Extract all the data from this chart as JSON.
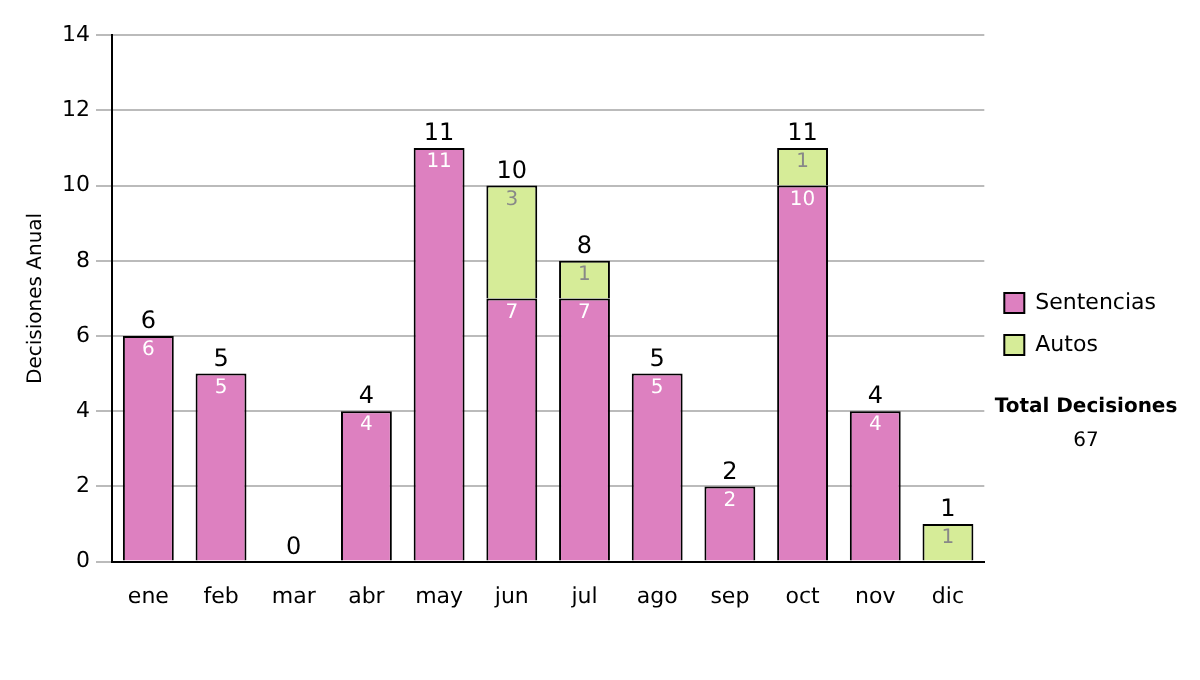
{
  "chart_data": {
    "type": "bar",
    "stacked": true,
    "ylabel": "Decisiones Anual",
    "categories": [
      "ene",
      "feb",
      "mar",
      "abr",
      "may",
      "jun",
      "jul",
      "ago",
      "sep",
      "oct",
      "nov",
      "dic"
    ],
    "series": [
      {
        "name": "Sentencias",
        "color": "#dd80c0",
        "values": [
          6,
          5,
          0,
          4,
          11,
          7,
          7,
          5,
          2,
          10,
          4,
          0
        ],
        "value_labels": [
          "6",
          "5",
          null,
          "4",
          "11",
          "7",
          "7",
          "5",
          "2",
          "10",
          "4",
          null
        ]
      },
      {
        "name": "Autos",
        "color": "#d6ec98",
        "values": [
          0,
          0,
          0,
          0,
          0,
          3,
          1,
          0,
          0,
          1,
          0,
          1
        ],
        "value_labels": [
          null,
          null,
          null,
          null,
          null,
          "3",
          "1",
          null,
          null,
          "1",
          null,
          "1"
        ]
      }
    ],
    "totals": [
      "6",
      "5",
      "0",
      "4",
      "11",
      "10",
      "8",
      "5",
      "2",
      "11",
      "4",
      "1"
    ],
    "ylim": [
      0,
      14
    ],
    "yticks": [
      0,
      2,
      4,
      6,
      8,
      10,
      12,
      14
    ],
    "grid": "y",
    "legend": "right",
    "annotations": [
      "Total Decisiones",
      "67"
    ]
  }
}
